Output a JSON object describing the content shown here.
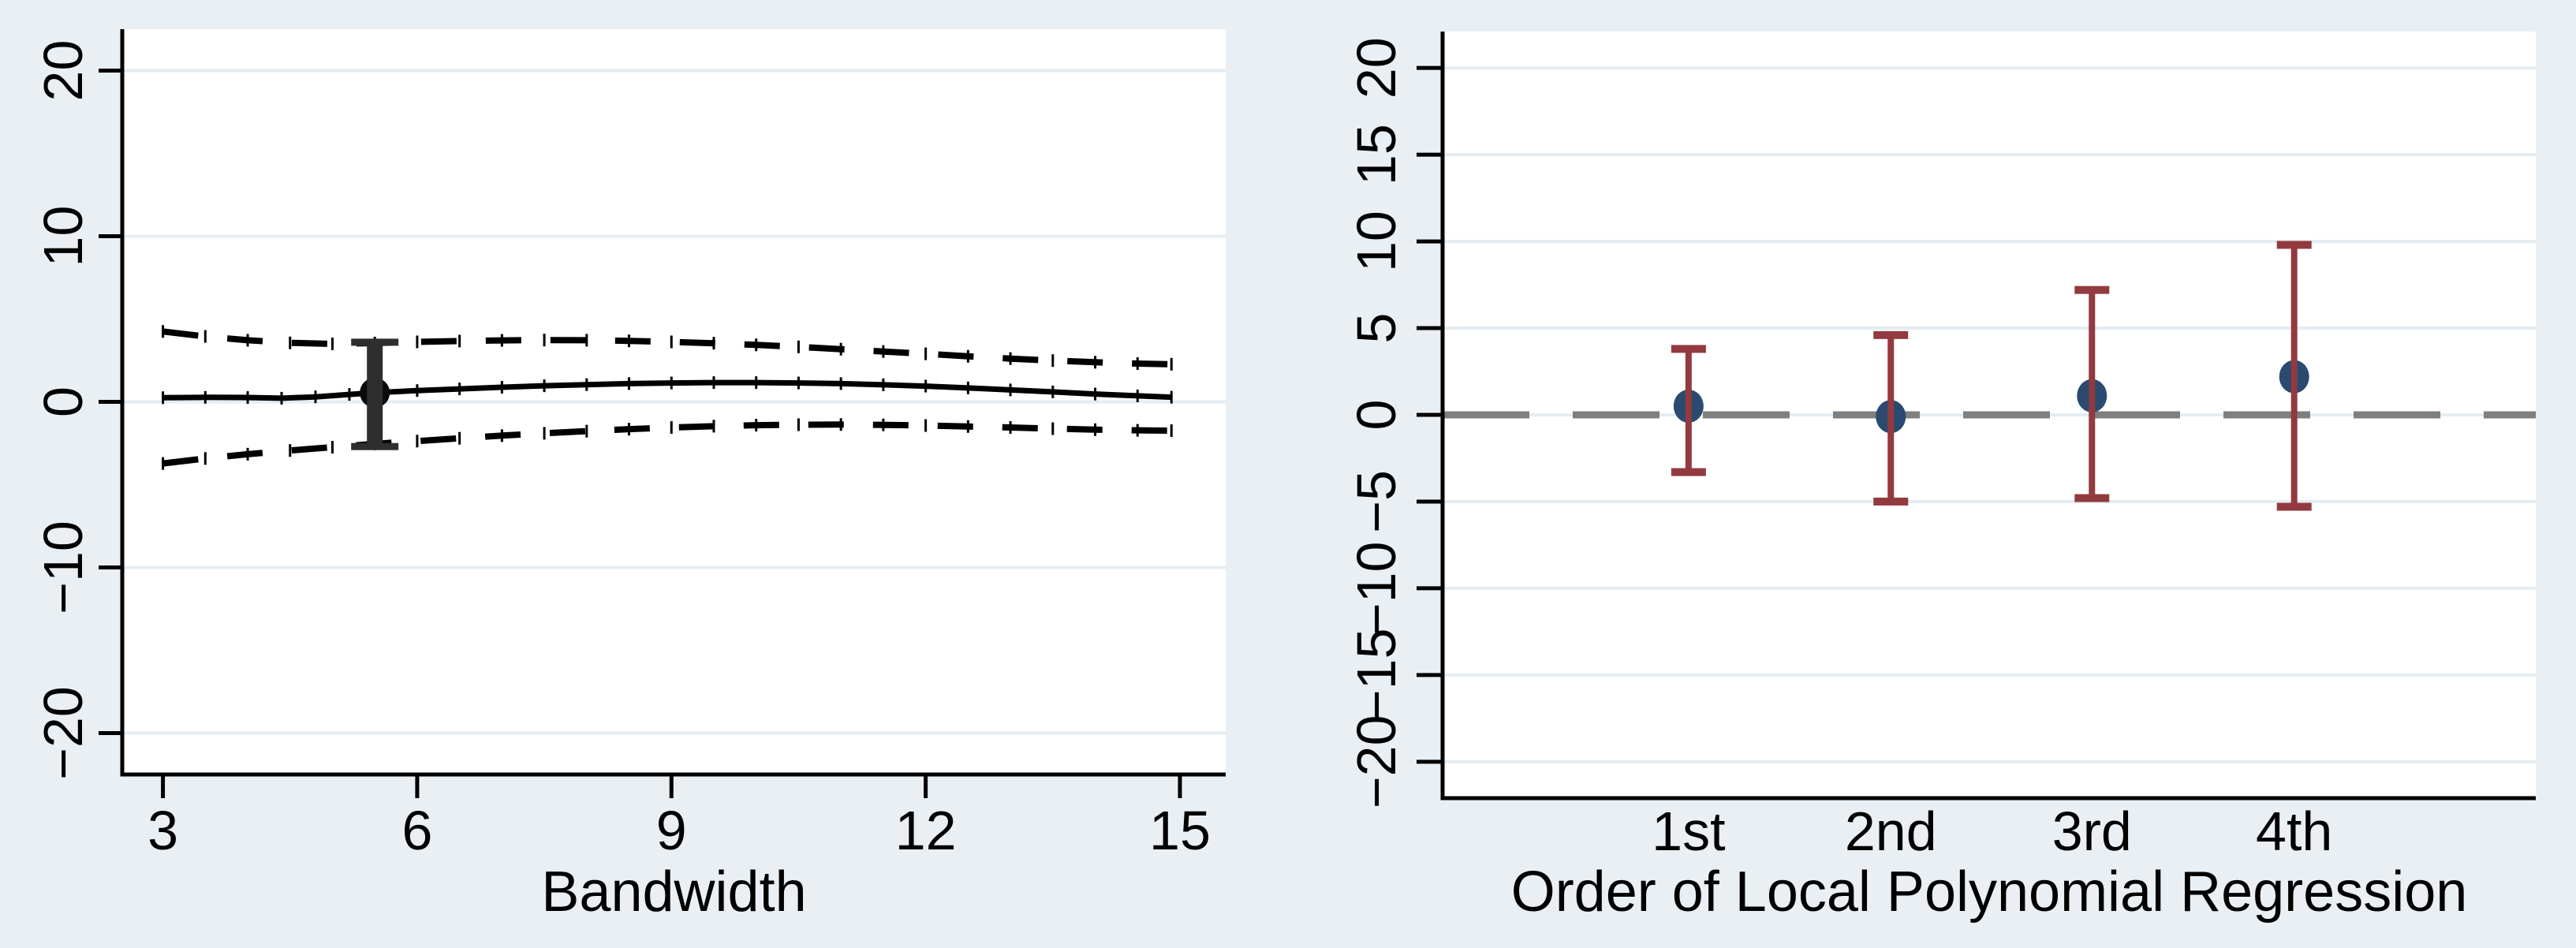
{
  "figure": {
    "description": "Two-panel RD robustness figure",
    "colors": {
      "background": "#e9eff3",
      "plot_background": "#ffffff",
      "grid": "#e4edf3",
      "axis": "#000000",
      "estimate_line": "#000000",
      "ci_dash": "#000000",
      "left_bar": "#2e2e2e",
      "left_dot": "#0a0a0a",
      "zero_line": "#7f7f7f",
      "marker": "#2b4a70",
      "error_bar": "#923a3f",
      "text": "#000000"
    }
  },
  "chart_data": [
    {
      "panel": "left",
      "type": "line",
      "title": "",
      "xlabel": "Bandwidth",
      "ylabel": "",
      "x_ticks": [
        3,
        6,
        9,
        12,
        15
      ],
      "y_ticks": [
        -20,
        -10,
        0,
        10,
        20
      ],
      "xlim": [
        2.52,
        15.54
      ],
      "ylim": [
        -22.5,
        22.5
      ],
      "grid": true,
      "legend": "none",
      "series": [
        {
          "name": "rd_estimate",
          "style": "solid",
          "points": [
            [
              3,
              0.25
            ],
            [
              3.5,
              0.27
            ],
            [
              4,
              0.26
            ],
            [
              4.4,
              0.22
            ],
            [
              4.8,
              0.3
            ],
            [
              5.2,
              0.45
            ],
            [
              5.5,
              0.55
            ],
            [
              6,
              0.68
            ],
            [
              6.5,
              0.78
            ],
            [
              7,
              0.88
            ],
            [
              7.5,
              0.97
            ],
            [
              8,
              1.04
            ],
            [
              8.5,
              1.1
            ],
            [
              9,
              1.14
            ],
            [
              9.5,
              1.16
            ],
            [
              10,
              1.16
            ],
            [
              10.5,
              1.14
            ],
            [
              11,
              1.1
            ],
            [
              11.5,
              1.03
            ],
            [
              12,
              0.95
            ],
            [
              12.5,
              0.84
            ],
            [
              13,
              0.72
            ],
            [
              13.5,
              0.6
            ],
            [
              14,
              0.47
            ],
            [
              14.5,
              0.36
            ],
            [
              14.9,
              0.28
            ]
          ]
        },
        {
          "name": "ci_upper",
          "style": "dashed",
          "points": [
            [
              3,
              4.25
            ],
            [
              3.5,
              3.95
            ],
            [
              4,
              3.72
            ],
            [
              4.5,
              3.56
            ],
            [
              5,
              3.5
            ],
            [
              5.5,
              3.55
            ],
            [
              6,
              3.62
            ],
            [
              6.5,
              3.67
            ],
            [
              7,
              3.71
            ],
            [
              7.5,
              3.73
            ],
            [
              8,
              3.72
            ],
            [
              8.5,
              3.68
            ],
            [
              9,
              3.62
            ],
            [
              9.5,
              3.54
            ],
            [
              10,
              3.44
            ],
            [
              10.5,
              3.32
            ],
            [
              11,
              3.18
            ],
            [
              11.5,
              3.04
            ],
            [
              12,
              2.9
            ],
            [
              12.5,
              2.75
            ],
            [
              13,
              2.61
            ],
            [
              13.5,
              2.49
            ],
            [
              14,
              2.39
            ],
            [
              14.5,
              2.31
            ],
            [
              14.9,
              2.27
            ]
          ]
        },
        {
          "name": "ci_lower",
          "style": "dashed",
          "points": [
            [
              3,
              -3.72
            ],
            [
              3.5,
              -3.42
            ],
            [
              4,
              -3.16
            ],
            [
              4.5,
              -2.94
            ],
            [
              5,
              -2.74
            ],
            [
              5.5,
              -2.54
            ],
            [
              6,
              -2.37
            ],
            [
              6.5,
              -2.2
            ],
            [
              7,
              -2.04
            ],
            [
              7.5,
              -1.9
            ],
            [
              8,
              -1.77
            ],
            [
              8.5,
              -1.65
            ],
            [
              9,
              -1.55
            ],
            [
              9.5,
              -1.47
            ],
            [
              10,
              -1.41
            ],
            [
              10.5,
              -1.38
            ],
            [
              11,
              -1.37
            ],
            [
              11.5,
              -1.39
            ],
            [
              12,
              -1.43
            ],
            [
              12.5,
              -1.49
            ],
            [
              13,
              -1.55
            ],
            [
              13.5,
              -1.62
            ],
            [
              14,
              -1.68
            ],
            [
              14.5,
              -1.72
            ],
            [
              14.9,
              -1.74
            ]
          ]
        }
      ],
      "point_estimate": {
        "x": 5.5,
        "estimate": 0.55,
        "ci_low": -2.7,
        "ci_high": 3.6
      }
    },
    {
      "panel": "right",
      "type": "scatter",
      "title": "",
      "xlabel": "Order of Local Polynomial Regression",
      "ylabel": "",
      "categories": [
        "1st",
        "2nd",
        "3rd",
        "4th"
      ],
      "estimates": [
        0.5,
        -0.1,
        1.1,
        2.2
      ],
      "ci_low": [
        -3.3,
        -5.0,
        -4.8,
        -5.3
      ],
      "ci_high": [
        3.8,
        4.6,
        7.2,
        9.8
      ],
      "y_ticks": [
        -20,
        -15,
        -10,
        -5,
        0,
        5,
        10,
        15,
        20
      ],
      "ylim": [
        -22.1,
        22.1
      ],
      "grid": true,
      "legend": "none",
      "zero_line": {
        "value": 0,
        "style": "dashed"
      }
    }
  ]
}
